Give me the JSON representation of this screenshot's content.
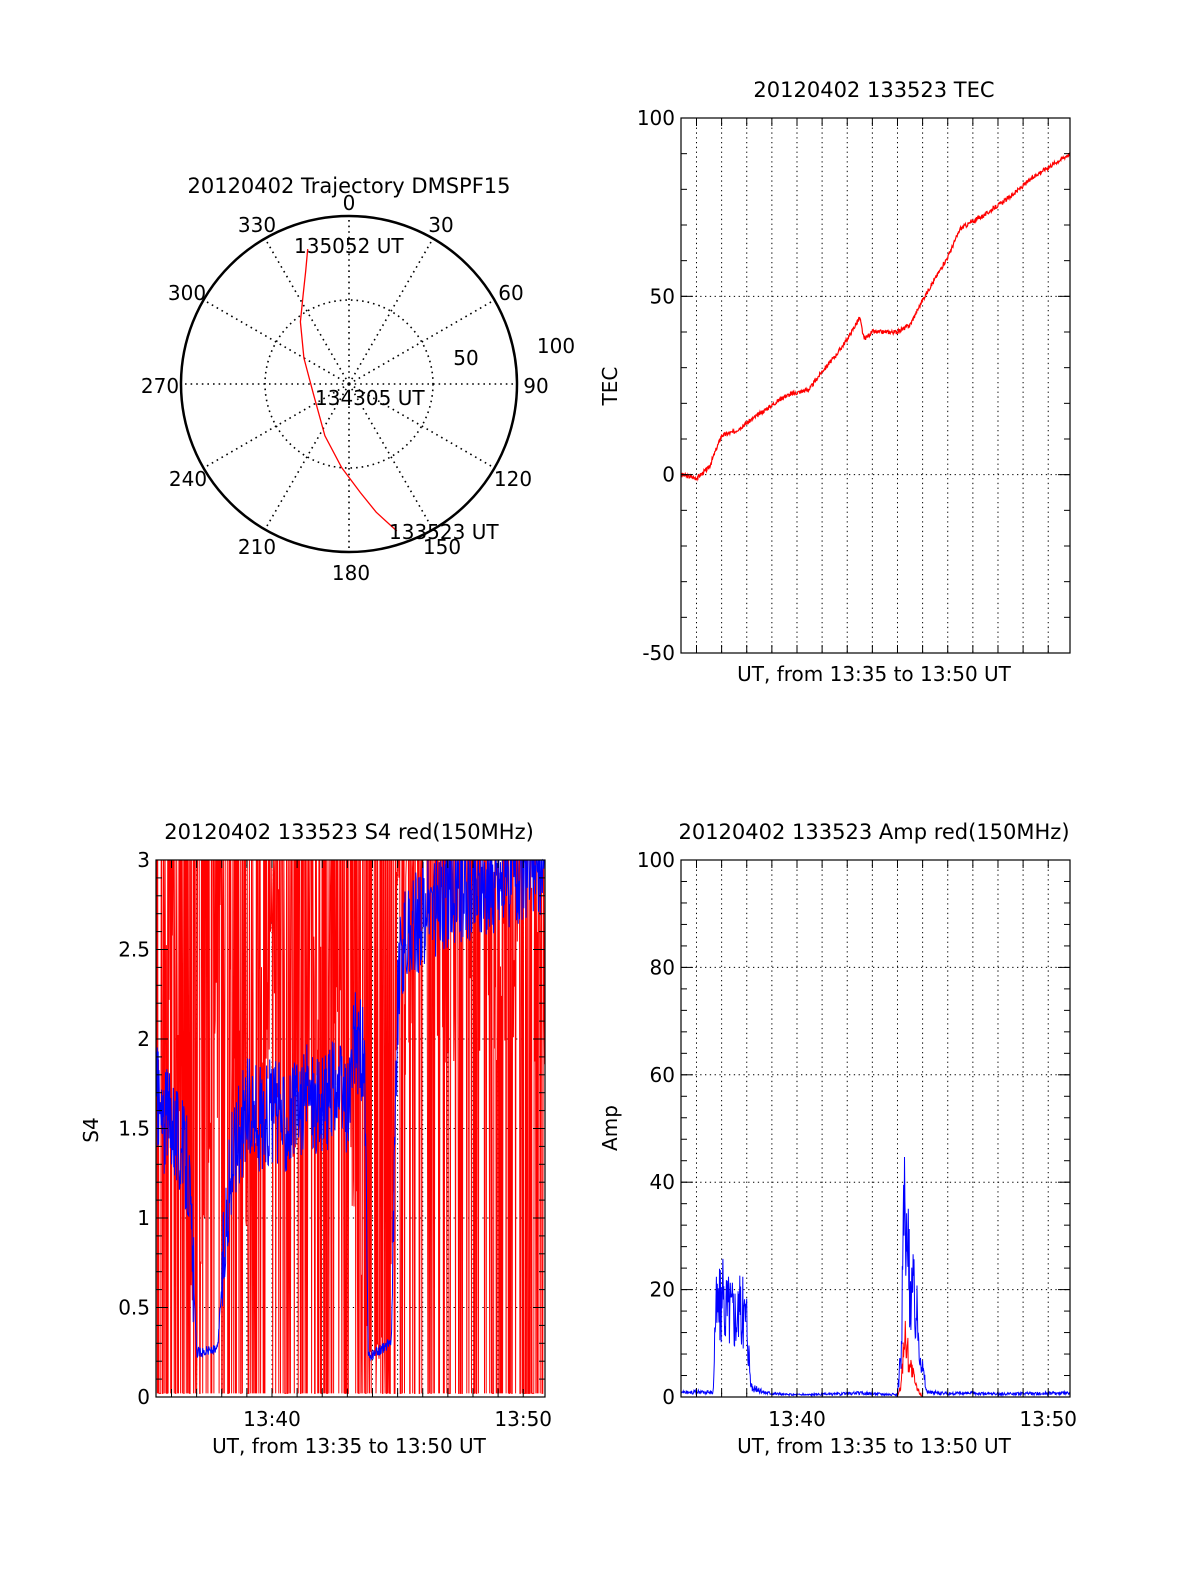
{
  "chart_data": [
    {
      "type": "polar",
      "title": "20120402 Trajectory DMSPF15",
      "azimuth_labels": [
        "0",
        "30",
        "60",
        "90",
        "120",
        "150",
        "180",
        "210",
        "240",
        "270",
        "300",
        "330"
      ],
      "radius_labels": [
        "50",
        "100"
      ],
      "radius_range": [
        0,
        100
      ],
      "annotations": [
        {
          "text": "135052 UT",
          "az": 343,
          "zen": 84
        },
        {
          "text": "134305 UT",
          "az": 0,
          "zen": 0
        },
        {
          "text": "133523 UT",
          "az": 162,
          "zen": 92
        }
      ],
      "trajectory": {
        "color": "#ff0000",
        "points": [
          {
            "az": 343,
            "zen": 84
          },
          {
            "az": 339,
            "zen": 72
          },
          {
            "az": 333,
            "zen": 60
          },
          {
            "az": 322,
            "zen": 47
          },
          {
            "az": 300,
            "zen": 31
          },
          {
            "az": 255,
            "zen": 22
          },
          {
            "az": 205,
            "zen": 34
          },
          {
            "az": 185,
            "zen": 50
          },
          {
            "az": 174,
            "zen": 65
          },
          {
            "az": 168,
            "zen": 78
          },
          {
            "az": 162,
            "zen": 92
          }
        ]
      }
    },
    {
      "type": "line",
      "title": "20120402 133523 TEC",
      "xlabel": "UT, from 13:35 to 13:50 UT",
      "ylabel": "TEC",
      "xlim": [
        "13:35:23",
        "13:50:52"
      ],
      "ylim": [
        -50,
        100
      ],
      "yticks": [
        "-50",
        "0",
        "50",
        "100"
      ],
      "xticks": [],
      "grid": true,
      "series": [
        {
          "color": "#ff0000",
          "x": [
            "13:35:23",
            "13:36:00",
            "13:36:30",
            "13:37:00",
            "13:37:30",
            "13:38:30",
            "13:39:30",
            "13:40:30",
            "13:41:00",
            "13:41:30",
            "13:42:00",
            "13:42:30",
            "13:42:40",
            "13:43:00",
            "13:44:00",
            "13:44:30",
            "13:45:00",
            "13:45:30",
            "13:46:00",
            "13:46:30",
            "13:47:30",
            "13:48:30",
            "13:49:30",
            "13:50:52"
          ],
          "values": [
            0,
            -1,
            2,
            11,
            12,
            17,
            22,
            24,
            29,
            33,
            38,
            44,
            38,
            40,
            40,
            42,
            49,
            55,
            61,
            69,
            73,
            78,
            84,
            90
          ]
        }
      ]
    },
    {
      "type": "line",
      "title": "20120402 133523 S4 red(150MHz)",
      "xlabel": "UT, from 13:35 to 13:50 UT",
      "ylabel": "S4",
      "xlim": [
        "13:35:23",
        "13:50:52"
      ],
      "ylim": [
        0,
        3
      ],
      "yticks": [
        "0",
        "0.5",
        "1",
        "1.5",
        "2",
        "2.5",
        "3"
      ],
      "xticks": [
        "13:40",
        "13:50"
      ],
      "grid": true,
      "series": [
        {
          "color": "#ff0000",
          "x": [
            "13:35:23",
            "13:36:00",
            "13:37:00",
            "13:38:00",
            "13:39:00",
            "13:40:00",
            "13:41:00",
            "13:42:00",
            "13:43:00",
            "13:43:50",
            "13:44:10",
            "13:44:40",
            "13:45:00",
            "13:46:00",
            "13:47:00",
            "13:48:00",
            "13:49:00",
            "13:50:52"
          ],
          "values": [
            1.5,
            3,
            0.3,
            3,
            1.5,
            3,
            1.6,
            3,
            1.8,
            0.3,
            0.3,
            0.35,
            3,
            3,
            3,
            3,
            3,
            3
          ]
        },
        {
          "color": "#0000ff",
          "x": [
            "13:35:23",
            "13:35:40",
            "13:36:00",
            "13:36:20",
            "13:36:40",
            "13:37:00",
            "13:37:30",
            "13:37:50",
            "13:38:10",
            "13:38:30",
            "13:39:00",
            "13:39:30",
            "13:40:00",
            "13:40:30",
            "13:41:00",
            "13:41:30",
            "13:42:00",
            "13:42:30",
            "13:43:00",
            "13:43:20",
            "13:43:40",
            "13:43:50",
            "13:44:10",
            "13:44:30",
            "13:44:45",
            "13:45:00",
            "13:45:10",
            "13:46:00",
            "13:47:00",
            "13:48:00",
            "13:49:00",
            "13:50:52"
          ],
          "values": [
            1.7,
            1.5,
            1.6,
            1.4,
            1.3,
            0.25,
            0.26,
            0.26,
            1.0,
            1.4,
            1.6,
            1.55,
            1.6,
            1.55,
            1.6,
            1.7,
            1.6,
            1.75,
            1.6,
            2.0,
            1.9,
            0.22,
            0.25,
            0.28,
            0.32,
            2.2,
            2.5,
            2.7,
            2.8,
            2.85,
            2.9,
            3.0
          ]
        }
      ]
    },
    {
      "type": "line",
      "title": "20120402 133523 Amp red(150MHz)",
      "xlabel": "UT, from 13:35 to 13:50 UT",
      "ylabel": "Amp",
      "xlim": [
        "13:35:23",
        "13:50:52"
      ],
      "ylim": [
        0,
        100
      ],
      "yticks": [
        "0",
        "20",
        "40",
        "60",
        "80",
        "100"
      ],
      "xticks": [
        "13:40",
        "13:50"
      ],
      "grid": true,
      "series": [
        {
          "color": "#ff0000",
          "x": [
            "13:35:23",
            "13:44:00",
            "13:44:10",
            "13:44:15",
            "13:44:30",
            "13:44:45",
            "13:45:00",
            "13:50:52"
          ],
          "values": [
            0,
            0,
            3,
            14,
            7,
            2,
            0,
            0
          ]
        },
        {
          "color": "#0000ff",
          "x": [
            "13:35:23",
            "13:36:40",
            "13:36:45",
            "13:37:00",
            "13:37:30",
            "13:38:00",
            "13:38:10",
            "13:38:40",
            "13:39:30",
            "13:40:30",
            "13:41:30",
            "13:42:30",
            "13:43:30",
            "13:44:00",
            "13:44:10",
            "13:44:15",
            "13:44:20",
            "13:44:30",
            "13:44:45",
            "13:45:00",
            "13:45:10",
            "13:46:00",
            "13:47:00",
            "13:48:00",
            "13:49:00",
            "13:50:52"
          ],
          "values": [
            1,
            1,
            18,
            20,
            18,
            17,
            2,
            1,
            0.5,
            0.5,
            0.6,
            0.8,
            0.6,
            0.5,
            10,
            45,
            30,
            25,
            18,
            6,
            1,
            0.7,
            0.8,
            0.6,
            0.7,
            0.8
          ]
        }
      ]
    }
  ]
}
